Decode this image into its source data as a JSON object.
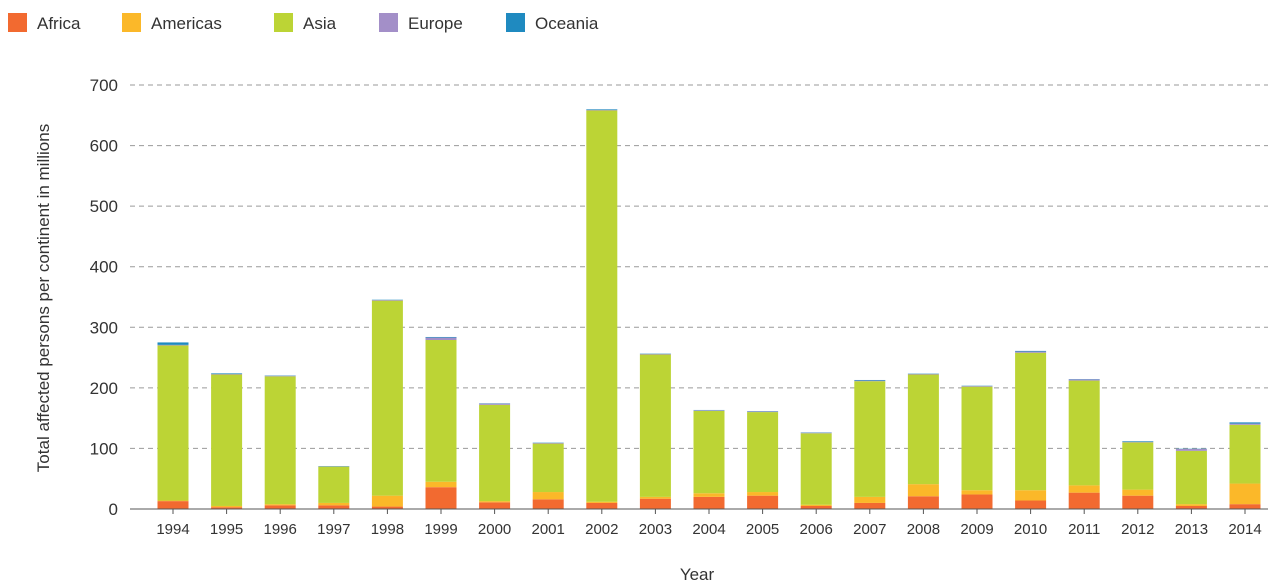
{
  "chart_data": {
    "type": "bar",
    "stacked": true,
    "title": "",
    "xlabel": "Year",
    "ylabel": "Total affected persons per continent in millions",
    "ylim": [
      0,
      700
    ],
    "yticks": [
      0,
      100,
      200,
      300,
      400,
      500,
      600,
      700
    ],
    "grid": true,
    "legend_position": "top-left",
    "categories": [
      "1994",
      "1995",
      "1996",
      "1997",
      "1998",
      "1999",
      "2000",
      "2001",
      "2002",
      "2003",
      "2004",
      "2005",
      "2006",
      "2007",
      "2008",
      "2009",
      "2010",
      "2011",
      "2012",
      "2013",
      "2014"
    ],
    "series": [
      {
        "name": "Africa",
        "color": "#f26a30",
        "values": [
          13,
          3,
          6,
          6,
          4,
          36,
          11,
          16,
          10,
          17,
          20,
          22,
          5,
          10,
          21,
          24,
          14,
          27,
          22,
          5,
          8
        ]
      },
      {
        "name": "Americas",
        "color": "#fbb829",
        "values": [
          1,
          2,
          2,
          4,
          18,
          9,
          2,
          12,
          2,
          3,
          6,
          6,
          2,
          10,
          20,
          7,
          17,
          12,
          10,
          3,
          34
        ]
      },
      {
        "name": "Asia",
        "color": "#bcd435",
        "values": [
          256,
          217,
          211,
          60,
          322,
          234,
          159,
          80,
          646,
          235,
          136,
          132,
          118,
          191,
          181,
          171,
          227,
          173,
          78,
          88,
          97
        ]
      },
      {
        "name": "Europe",
        "color": "#a38fc8",
        "values": [
          1,
          1,
          1,
          0.5,
          1,
          4,
          2,
          1,
          1,
          1,
          1,
          1,
          1,
          1,
          1,
          1,
          2,
          2,
          1,
          3,
          2
        ]
      },
      {
        "name": "Oceania",
        "color": "#1f8ac0",
        "values": [
          4,
          1,
          0.5,
          0.5,
          0.5,
          1,
          0.5,
          0.5,
          1,
          0.5,
          0.5,
          0.5,
          0.5,
          1,
          0.5,
          0.5,
          1,
          0.5,
          1,
          0.5,
          2
        ]
      }
    ]
  }
}
